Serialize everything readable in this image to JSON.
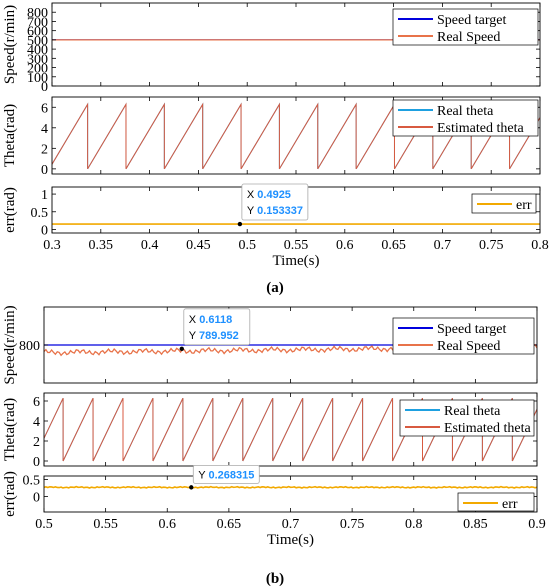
{
  "figure": {
    "captions": [
      "(a)",
      "(b)"
    ]
  },
  "colors": {
    "speed_target": "#0000dd",
    "real_speed": "#e8734a",
    "real_theta": "#1ea0e0",
    "estimated_theta": "#d85a40",
    "err": "#f2a900",
    "datatip_value": "#1e90ff"
  },
  "chart_data": [
    {
      "panel": "a",
      "type": "line",
      "ylabel": "Speed(r/min)",
      "ylim": [
        0,
        900
      ],
      "yticks": [
        "0",
        "100",
        "200",
        "300",
        "400",
        "500",
        "600",
        "700",
        "800"
      ],
      "xlim": [
        0.3,
        0.8
      ],
      "legend_position": "top-right",
      "series": [
        {
          "name": "Speed target",
          "x": [
            0.3,
            0.8
          ],
          "y": [
            500,
            500
          ]
        },
        {
          "name": "Real Speed",
          "x": [
            0.3,
            0.8
          ],
          "y": [
            500,
            500
          ]
        }
      ]
    },
    {
      "panel": "a",
      "type": "line",
      "ylabel": "Theta(rad)",
      "ylim": [
        -0.5,
        7
      ],
      "yticks": [
        "0",
        "2",
        "4",
        "6"
      ],
      "xlim": [
        0.3,
        0.8
      ],
      "legend_position": "top-right",
      "sawtooth": {
        "period": 0.0393,
        "phase": 0.3365,
        "peak": 6.283
      },
      "series": [
        {
          "name": "Real theta"
        },
        {
          "name": "Estimated theta"
        }
      ]
    },
    {
      "panel": "a",
      "type": "line",
      "ylabel": "err(rad)",
      "ylim": [
        -0.1,
        1.2
      ],
      "yticks": [
        "0",
        "0.5",
        "1"
      ],
      "xlabel": "Time(s)",
      "xlim": [
        0.3,
        0.8
      ],
      "xticks": [
        "0.3",
        "0.35",
        "0.4",
        "0.45",
        "0.5",
        "0.55",
        "0.6",
        "0.65",
        "0.7",
        "0.75",
        "0.8"
      ],
      "legend_position": "top-right",
      "series": [
        {
          "name": "err",
          "x": [
            0.3,
            0.8
          ],
          "y": [
            0.153,
            0.153
          ]
        }
      ],
      "datatip": {
        "x_label": "X",
        "x_value": "0.4925",
        "y_label": "Y",
        "y_value": "0.153337",
        "point": [
          0.4925,
          0.153337
        ]
      }
    },
    {
      "panel": "b",
      "type": "line",
      "ylabel": "Speed(r/min)",
      "ylim": [
        700,
        900
      ],
      "yticks": [
        "800"
      ],
      "xlim": [
        0.5,
        0.9
      ],
      "legend_position": "top-right",
      "series": [
        {
          "name": "Speed target",
          "x": [
            0.5,
            0.9
          ],
          "y": [
            800,
            800
          ]
        },
        {
          "name": "Real Speed",
          "x_range": [
            0.5,
            0.9
          ],
          "y_start": 780,
          "y_end": 795,
          "ripple": 8
        }
      ],
      "datatip": {
        "x_label": "X",
        "x_value": "0.6118",
        "y_label": "Y",
        "y_value": "789.952",
        "point": [
          0.6118,
          789.952
        ]
      }
    },
    {
      "panel": "b",
      "type": "line",
      "ylabel": "Theta(rad)",
      "ylim": [
        -0.5,
        6.8
      ],
      "yticks": [
        "0",
        "2",
        "4",
        "6"
      ],
      "xlim": [
        0.5,
        0.9
      ],
      "legend_position": "top-right",
      "sawtooth": {
        "period": 0.0243,
        "phase": 0.5155,
        "peak": 6.283
      },
      "series": [
        {
          "name": "Real theta"
        },
        {
          "name": "Estimated theta"
        }
      ]
    },
    {
      "panel": "b",
      "type": "line",
      "ylabel": "err(rad)",
      "ylim": [
        -0.45,
        0.6
      ],
      "yticks": [
        "0",
        "0.5"
      ],
      "xlabel": "Time(s)",
      "xlim": [
        0.5,
        0.9
      ],
      "xticks": [
        "0.5",
        "0.55",
        "0.6",
        "0.65",
        "0.7",
        "0.75",
        "0.8",
        "0.85",
        "0.9"
      ],
      "legend_position": "bottom-right",
      "series": [
        {
          "name": "err",
          "x_range": [
            0.5,
            0.9
          ],
          "y_mean": 0.27,
          "ripple": 0.02
        }
      ],
      "datatip": {
        "y_label": "Y",
        "y_value": "0.268315",
        "point": [
          0.6195,
          0.268315
        ]
      }
    }
  ]
}
